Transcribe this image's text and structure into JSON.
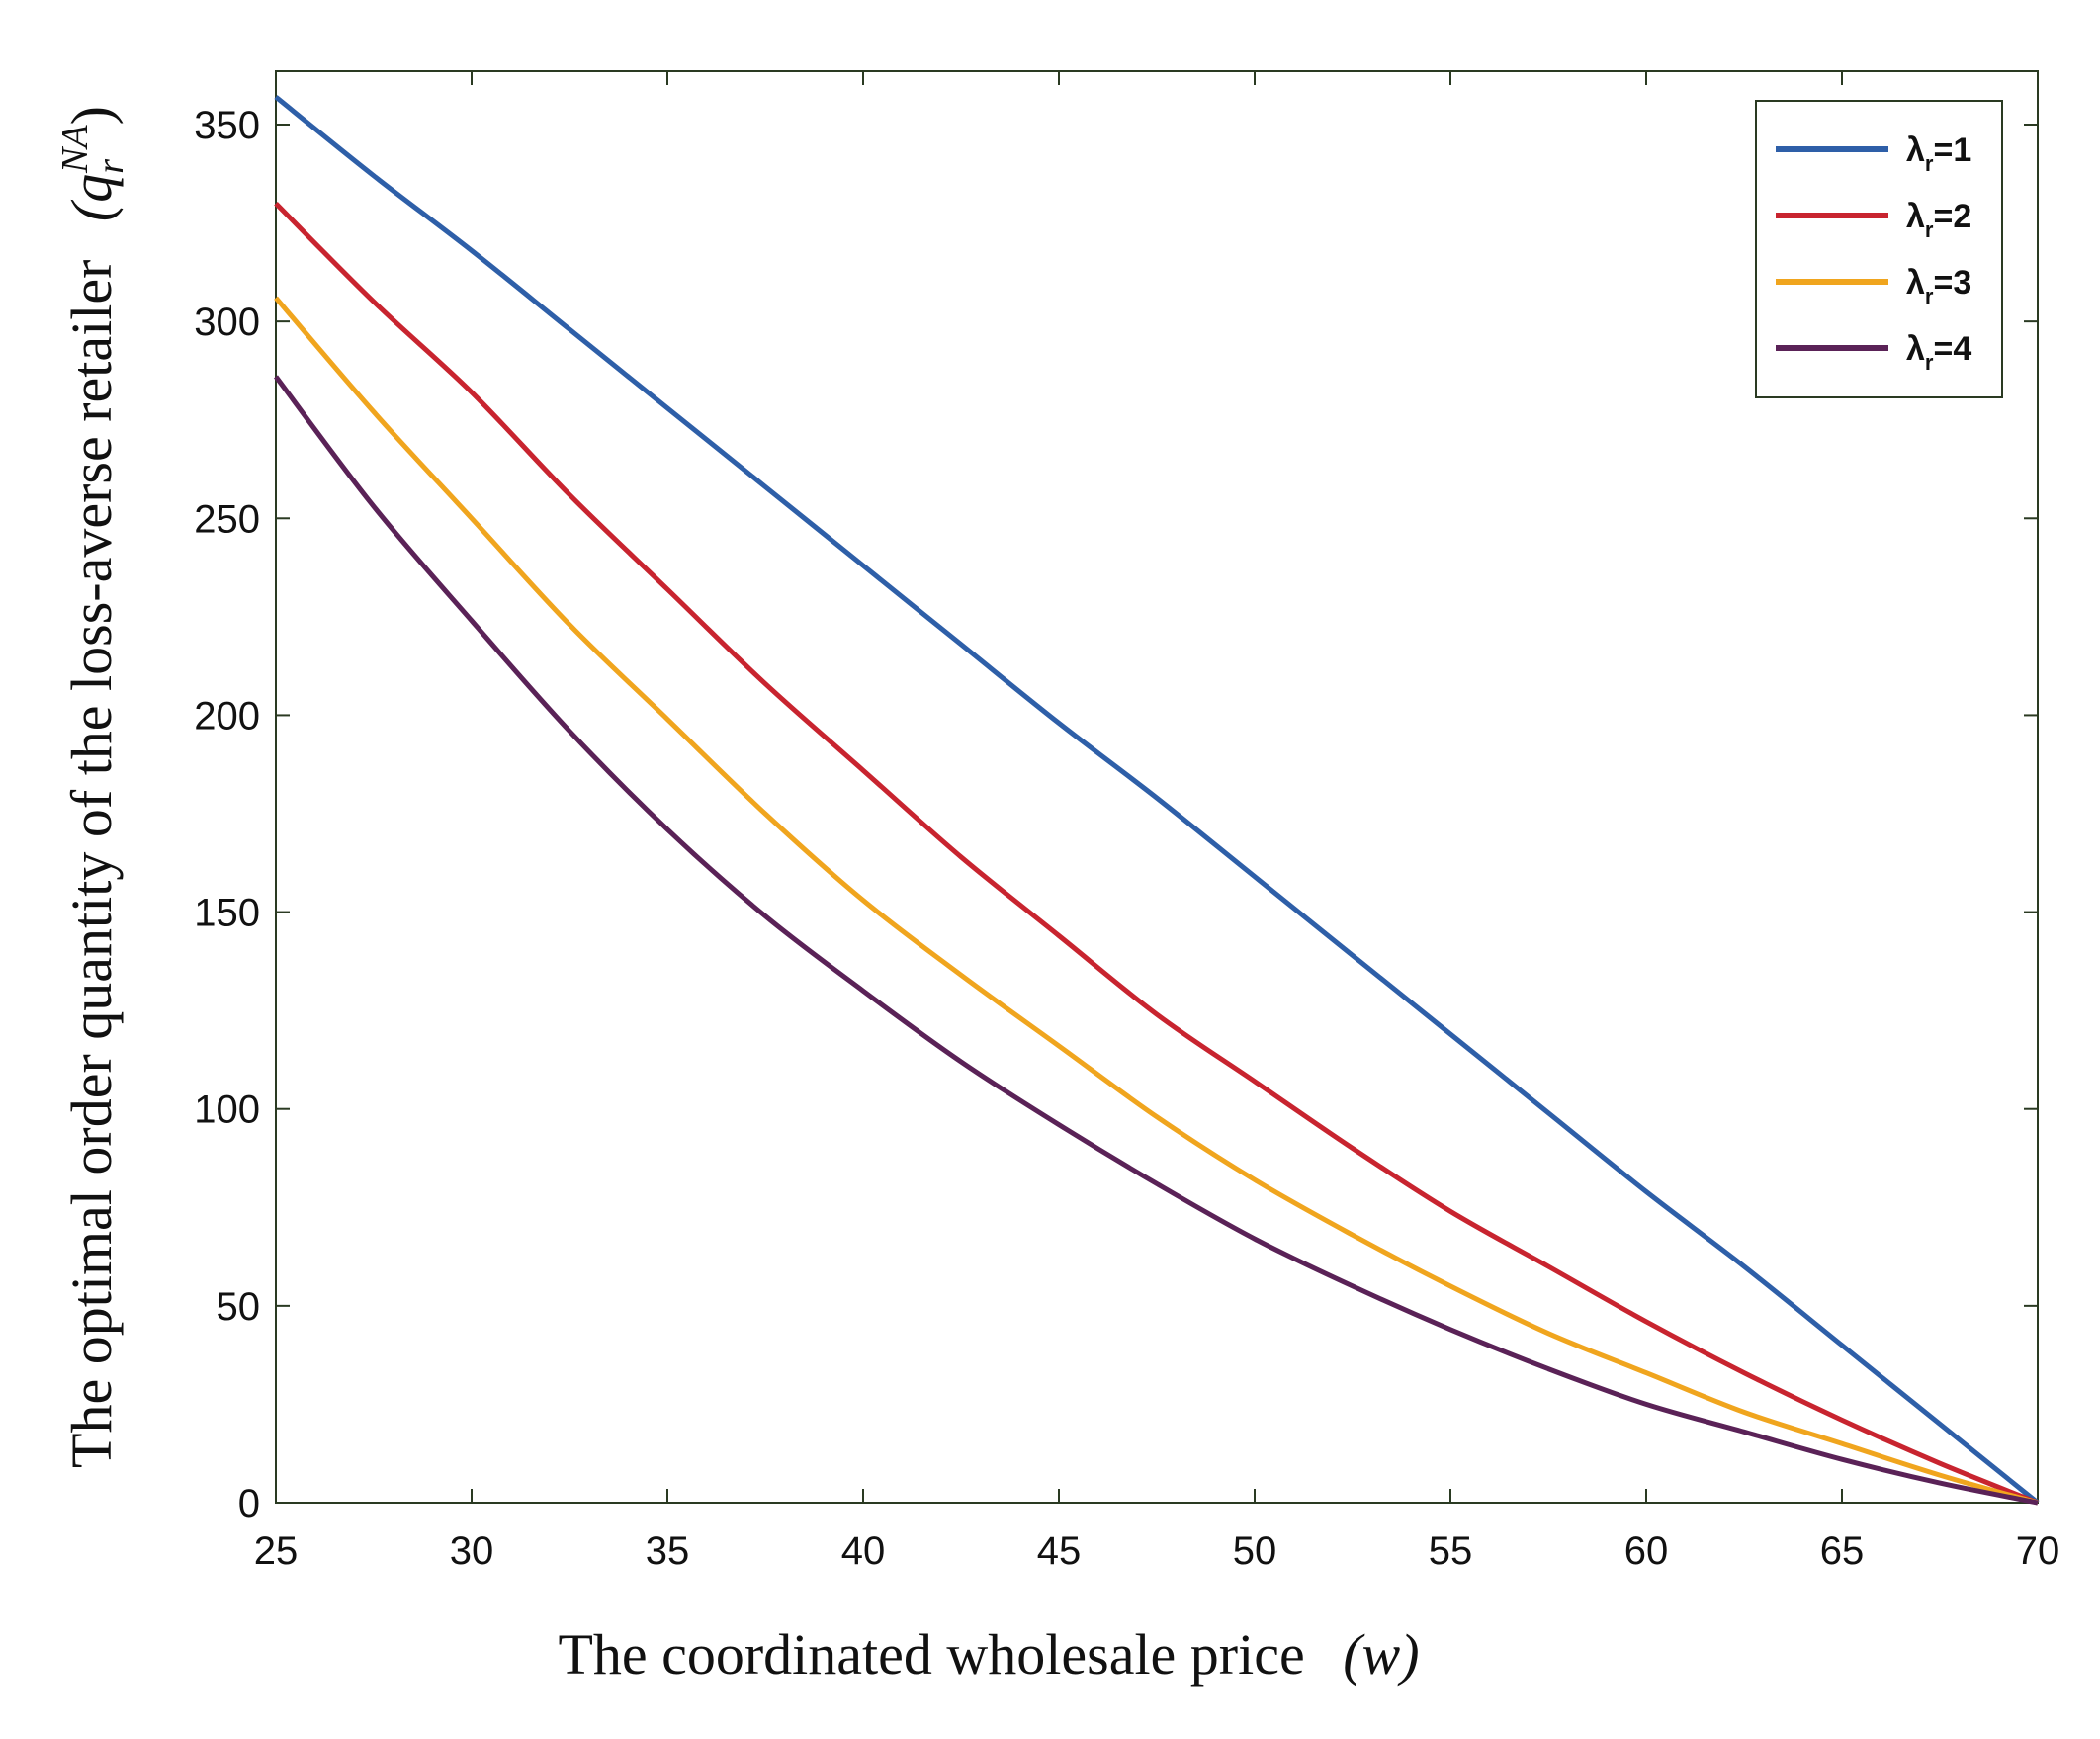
{
  "chart_data": {
    "type": "line",
    "title": "",
    "xlabel": "The coordinated wholesale price",
    "xlabel_symbol": "(w)",
    "ylabel": "The optimal order quantity of the loss-averse retailer",
    "ylabel_symbol": "(q",
    "ylabel_sub": "r",
    "ylabel_sup": "NA",
    "ylabel_close": ")",
    "xlim": [
      25,
      70
    ],
    "ylim": [
      0,
      360
    ],
    "xticks": [
      25,
      30,
      35,
      40,
      45,
      50,
      55,
      60,
      65,
      70
    ],
    "yticks": [
      0,
      50,
      100,
      150,
      200,
      250,
      300,
      350
    ],
    "grid": false,
    "legend_position": "top-right",
    "x": [
      25,
      27.5,
      30,
      32.5,
      35,
      37.5,
      40,
      42.5,
      45,
      47.5,
      50,
      52.5,
      55,
      57.5,
      60,
      62.5,
      65,
      67.5,
      70
    ],
    "series": [
      {
        "name": "λr=1",
        "lambda_symbol": "λ",
        "lambda_sub": "r",
        "lambda_value": "=1",
        "color": "#2e5fa8",
        "values": [
          357,
          337,
          318,
          298,
          278,
          258,
          238,
          218,
          198,
          179,
          159,
          139,
          119,
          99,
          79,
          60,
          40,
          20,
          0
        ]
      },
      {
        "name": "λr=2",
        "lambda_symbol": "λ",
        "lambda_sub": "r",
        "lambda_value": "=2",
        "color": "#c8242f",
        "values": [
          330,
          305,
          282,
          256,
          232,
          208,
          186,
          164,
          144,
          124,
          107,
          90,
          74,
          60,
          46,
          33,
          21,
          10,
          0
        ]
      },
      {
        "name": "λr=3",
        "lambda_symbol": "λ",
        "lambda_sub": "r",
        "lambda_value": "=3",
        "color": "#f0a51e",
        "values": [
          306,
          277,
          250,
          223,
          199,
          175,
          153,
          134,
          116,
          98,
          82,
          68,
          55,
          43,
          33,
          23,
          15,
          7,
          0
        ]
      },
      {
        "name": "λr=4",
        "lambda_symbol": "λ",
        "lambda_sub": "r",
        "lambda_value": "=4",
        "color": "#5a2257",
        "values": [
          286,
          253,
          224,
          196,
          171,
          149,
          130,
          112,
          96,
          81,
          67,
          55,
          44,
          34,
          25,
          18,
          11,
          5,
          0
        ]
      }
    ]
  }
}
